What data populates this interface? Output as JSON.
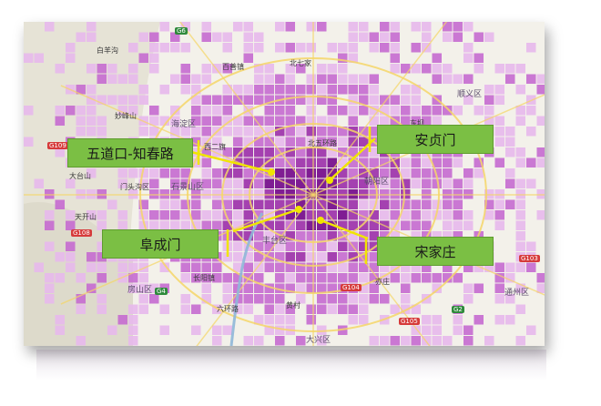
{
  "map": {
    "callouts": [
      {
        "id": "wudaokou",
        "label": "五道口-知春路"
      },
      {
        "id": "andingmen",
        "label": "安贞门"
      },
      {
        "id": "fuchengmen",
        "label": "阜成门"
      },
      {
        "id": "songjiazhuang",
        "label": "宋家庄"
      }
    ],
    "place_labels": [
      {
        "key": "baiyangou",
        "text": "白羊沟"
      },
      {
        "key": "miaofengshan",
        "text": "妙峰山"
      },
      {
        "key": "haidian",
        "text": "海淀区"
      },
      {
        "key": "xierqi",
        "text": "西二旗"
      },
      {
        "key": "beiwuhuan",
        "text": "北五环路"
      },
      {
        "key": "chaoyang",
        "text": "朝阳区"
      },
      {
        "key": "fengtai",
        "text": "丰台区"
      },
      {
        "key": "daxing",
        "text": "大兴区"
      },
      {
        "key": "tongzhou",
        "text": "通州区"
      },
      {
        "key": "shijingshan",
        "text": "石景山区"
      },
      {
        "key": "mentougou",
        "text": "门头沟区"
      },
      {
        "key": "fangshan",
        "text": "房山区"
      },
      {
        "key": "changyang",
        "text": "长阳镇"
      },
      {
        "key": "tiankai",
        "text": "天开山"
      },
      {
        "key": "dataishan",
        "text": "大台山"
      },
      {
        "key": "shunyi",
        "text": "顺义区"
      },
      {
        "key": "beiqijia",
        "text": "北七家"
      },
      {
        "key": "donghu",
        "text": "东坝"
      },
      {
        "key": "yizhuang",
        "text": "亦庄"
      },
      {
        "key": "huangcun",
        "text": "黄村"
      },
      {
        "key": "baiyangyan",
        "text": "百善镇"
      },
      {
        "key": "liulimiao",
        "text": "六环路"
      }
    ],
    "road_badges": [
      {
        "key": "g6",
        "text": "G6",
        "style": "green"
      },
      {
        "key": "g109",
        "text": "G109",
        "style": "red"
      },
      {
        "key": "g108",
        "text": "G108",
        "style": "red"
      },
      {
        "key": "g4",
        "text": "G4",
        "style": "green"
      },
      {
        "key": "g104",
        "text": "G104",
        "style": "red"
      },
      {
        "key": "g105",
        "text": "G105",
        "style": "red"
      },
      {
        "key": "g103",
        "text": "G103",
        "style": "red"
      },
      {
        "key": "g2",
        "text": "G2",
        "style": "green"
      }
    ],
    "colors": {
      "heat_light": "#e7b8ec",
      "heat_mid": "#c56ad0",
      "heat_strong": "#9b2eaa",
      "heat_max": "#72068a",
      "callout_fill": "#7bbf44",
      "leader_line": "#f0e500",
      "background": "#f3f1ea",
      "road_yellow": "#f5d667",
      "road_blue": "#8fb7d8"
    }
  }
}
